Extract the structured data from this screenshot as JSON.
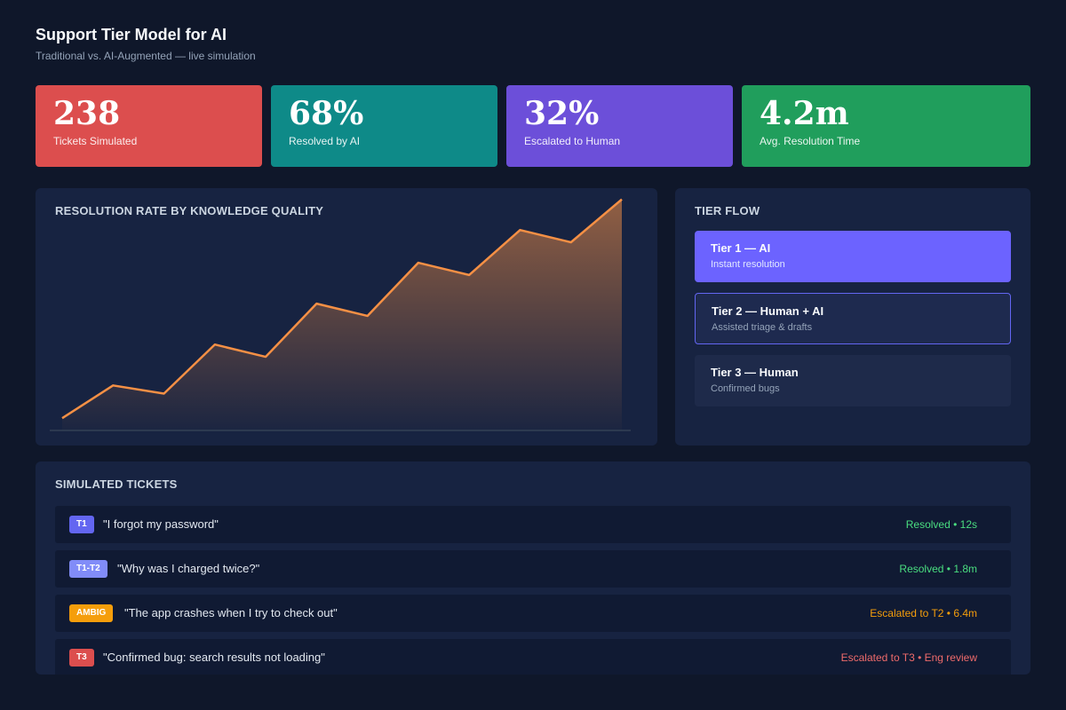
{
  "header": {
    "title": "Support Tier Model for AI",
    "subtitle": "Traditional vs. AI-Augmented — live simulation"
  },
  "kpis": [
    {
      "value": "238",
      "label": "Tickets Simulated",
      "color": "#dc4e4e"
    },
    {
      "value": "68%",
      "label": "Resolved by AI",
      "color": "#0e8a88"
    },
    {
      "value": "32%",
      "label": "Escalated to Human",
      "color": "#6c4fd9"
    },
    {
      "value": "4.2m",
      "label": "Avg. Resolution Time",
      "color": "#209e5c"
    }
  ],
  "chart_panel": {
    "title": "RESOLUTION RATE BY KNOWLEDGE QUALITY"
  },
  "chart_data": {
    "type": "area",
    "title": "RESOLUTION RATE BY KNOWLEDGE QUALITY",
    "x": [
      1,
      2,
      3,
      4,
      5,
      6,
      7,
      8,
      9,
      10,
      11,
      12
    ],
    "values": [
      6,
      22,
      18,
      42,
      36,
      62,
      56,
      82,
      76,
      98,
      92,
      113
    ],
    "ylim": [
      0,
      115
    ],
    "grid": false,
    "legend": "none",
    "line_color": "#f59045"
  },
  "tier_flow": {
    "title": "TIER FLOW",
    "tiers": [
      {
        "name": "Tier 1 — AI",
        "desc": "Instant resolution"
      },
      {
        "name": "Tier 2 — Human + AI",
        "desc": "Assisted triage & drafts"
      },
      {
        "name": "Tier 3 — Human",
        "desc": "Confirmed bugs"
      }
    ]
  },
  "tickets": {
    "title": "SIMULATED TICKETS",
    "items": [
      {
        "badge": "T1",
        "badge_color": "#6366f1",
        "text": "\"I forgot my password\"",
        "status": "Resolved • 12s",
        "status_color": "#4ade80"
      },
      {
        "badge": "T1-T2",
        "badge_color": "#818cf8",
        "text": "\"Why was I charged twice?\"",
        "status": "Resolved • 1.8m",
        "status_color": "#4ade80"
      },
      {
        "badge": "AMBIG",
        "badge_color": "#f59e0b",
        "text": "\"The app crashes when I try to check out\"",
        "status": "Escalated to T2 • 6.4m",
        "status_color": "#f59e0b"
      },
      {
        "badge": "T3",
        "badge_color": "#dc4e4e",
        "text": "\"Confirmed bug: search results not loading\"",
        "status": "Escalated to T3 • Eng review",
        "status_color": "#ef6b6b"
      }
    ]
  }
}
